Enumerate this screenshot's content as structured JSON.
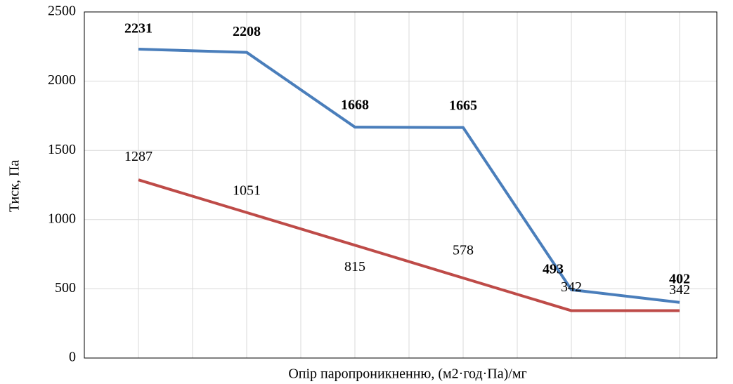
{
  "chart_data": {
    "type": "line",
    "x_label": "Опір паропроникненню, (м2·год·Па)/мг",
    "y_label": "Тиск, Па",
    "categories": [
      null,
      null,
      null,
      null,
      null,
      null
    ],
    "series": [
      {
        "color": "#4a7ebb",
        "values": [
          2231,
          2208,
          1668,
          1665,
          493,
          402
        ]
      },
      {
        "color": "#be4b48",
        "values": [
          1287,
          1051,
          815,
          578,
          342,
          342
        ]
      }
    ],
    "ylim": [
      0,
      2500
    ],
    "yticks": [
      0,
      500,
      1000,
      1500,
      2000,
      2500
    ],
    "grid": true
  }
}
